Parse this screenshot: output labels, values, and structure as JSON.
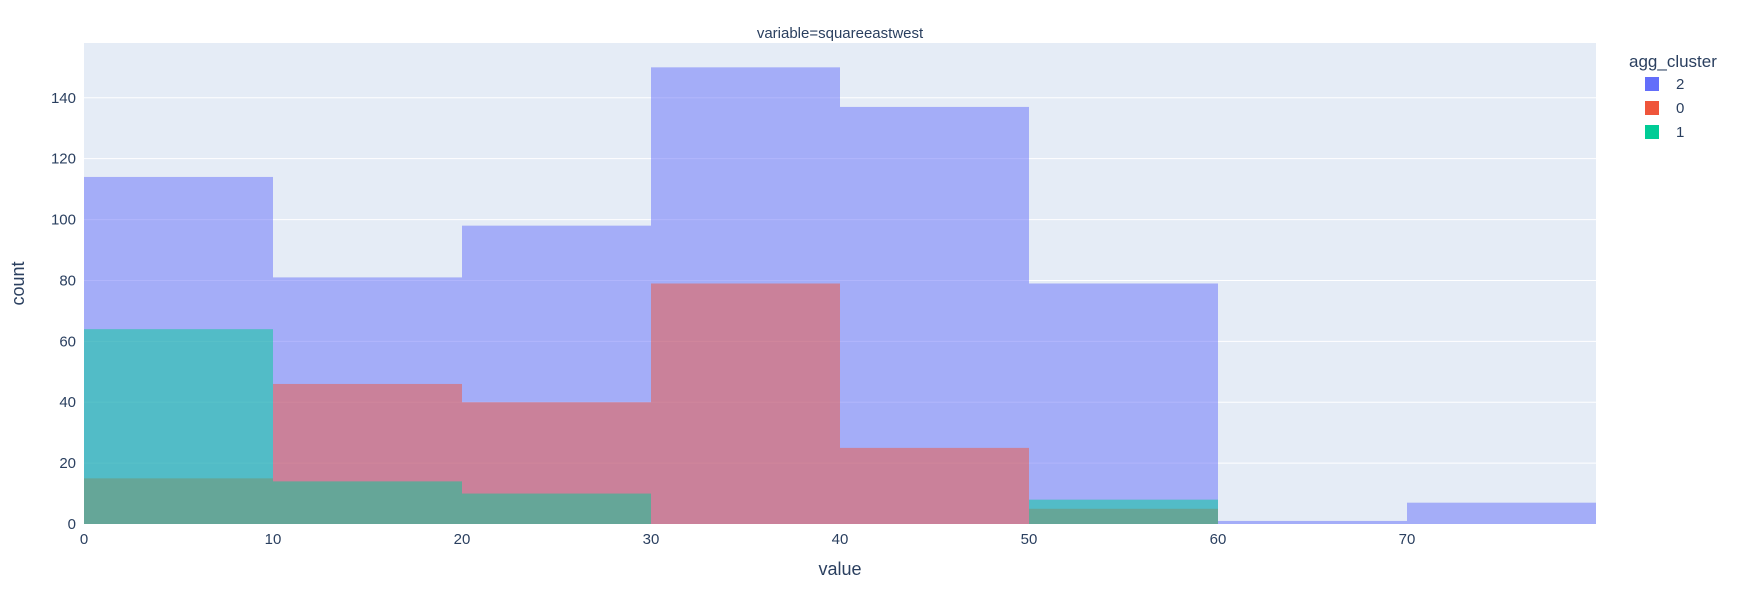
{
  "chart_data": {
    "type": "bar",
    "title": "variable=squareeastwest",
    "xlabel": "value",
    "ylabel": "count",
    "xlim": [
      0,
      80
    ],
    "ylim": [
      0,
      158
    ],
    "x_ticks": [
      0,
      10,
      20,
      30,
      40,
      50,
      60,
      70
    ],
    "y_ticks": [
      0,
      20,
      40,
      60,
      80,
      100,
      120,
      140
    ],
    "bin_edges": [
      0,
      10,
      20,
      30,
      40,
      50,
      60,
      70,
      80
    ],
    "grid": true,
    "barmode": "overlay",
    "legend": {
      "title": "agg_cluster",
      "position": "top-right"
    },
    "series": [
      {
        "name": "2",
        "color": "#636efa",
        "values": [
          114,
          81,
          98,
          150,
          137,
          79,
          1,
          7
        ]
      },
      {
        "name": "0",
        "color": "#ef553b",
        "values": [
          15,
          46,
          40,
          79,
          25,
          5,
          0,
          0
        ]
      },
      {
        "name": "1",
        "color": "#00cc96",
        "values": [
          64,
          14,
          10,
          0,
          0,
          8,
          0,
          0
        ]
      }
    ]
  }
}
